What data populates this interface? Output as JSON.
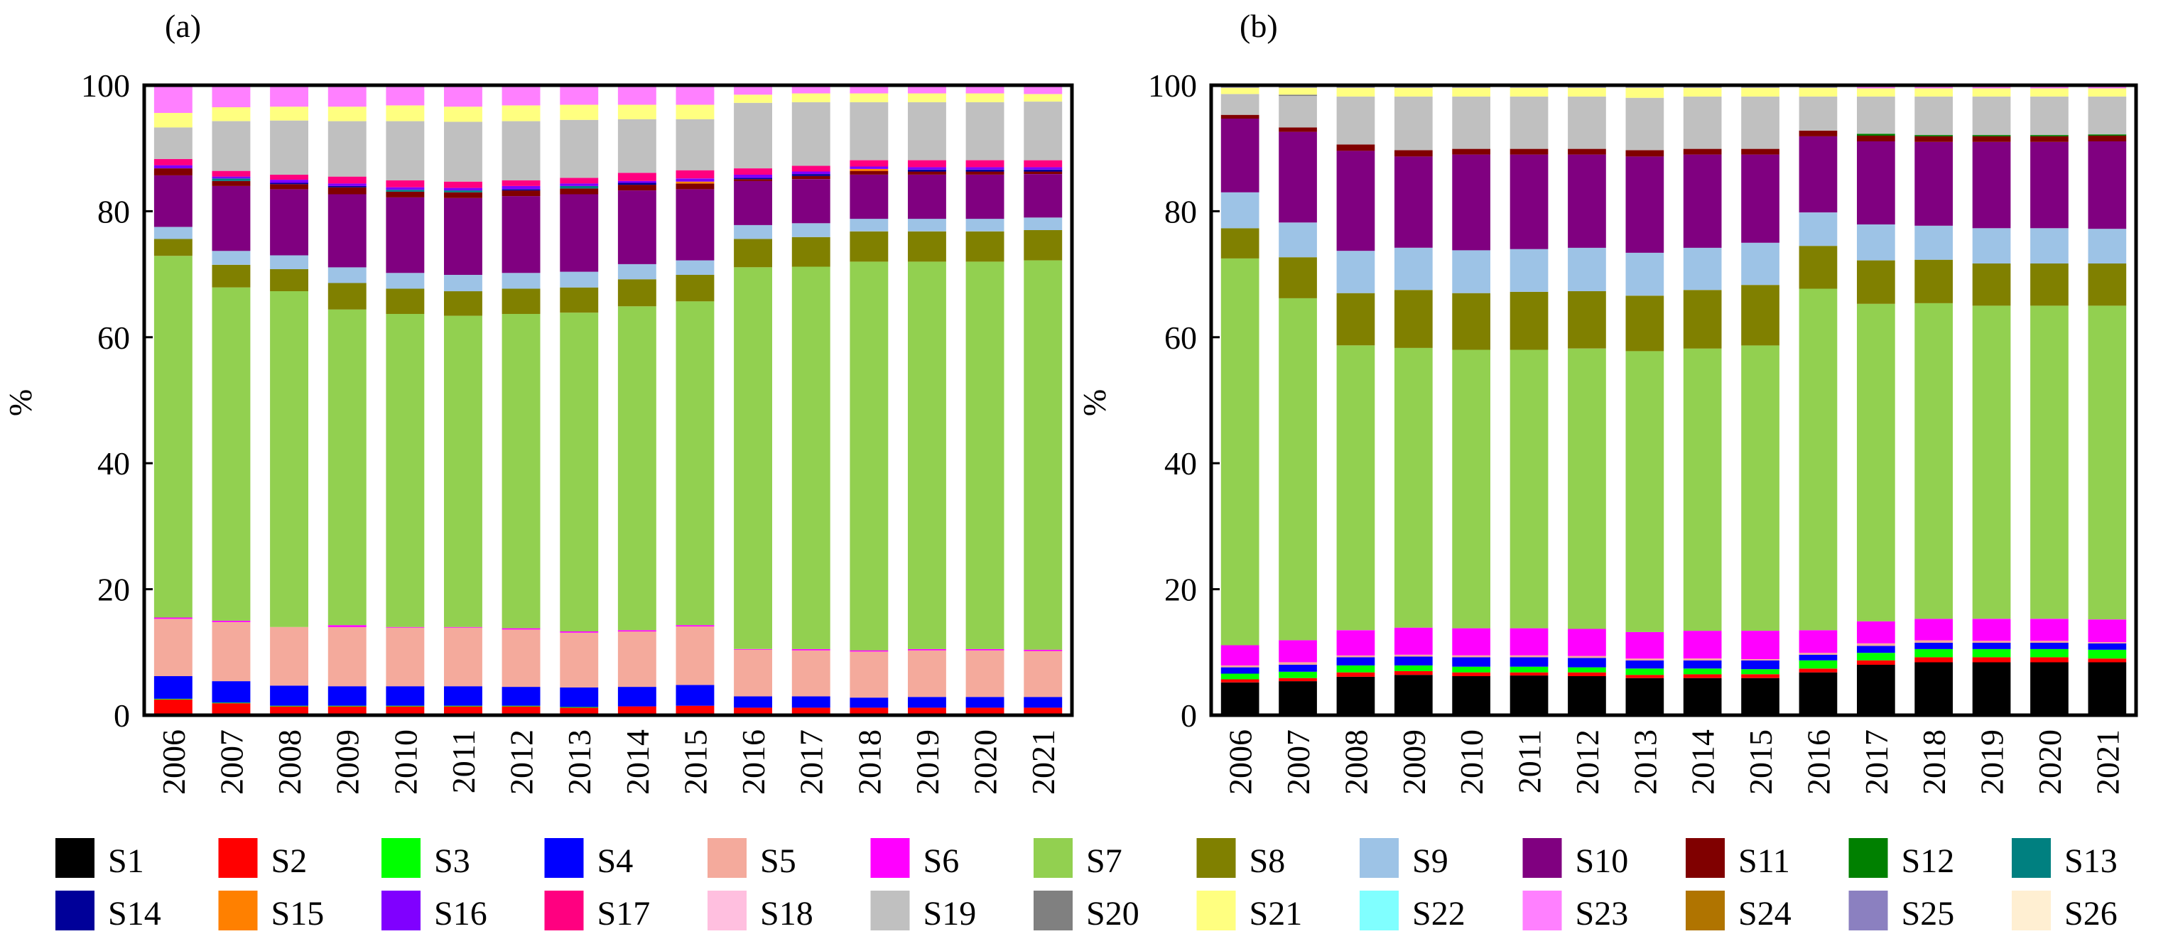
{
  "chart_data": [
    {
      "type": "bar",
      "stacked": true,
      "panel_label": "(a)",
      "ylabel": "%",
      "xlabel": "",
      "ylim": [
        0,
        100
      ],
      "yticks": [
        0,
        20,
        40,
        60,
        80,
        100
      ],
      "categories": [
        "2006",
        "2007",
        "2008",
        "2009",
        "2010",
        "2011",
        "2012",
        "2013",
        "2014",
        "2015",
        "2016",
        "2017",
        "2018",
        "2019",
        "2020",
        "2021"
      ],
      "series": [
        {
          "name": "S1",
          "values": [
            0.1,
            0.1,
            0.1,
            0.1,
            0.1,
            0.1,
            0.1,
            0.1,
            0.1,
            0.1,
            0.1,
            0.1,
            0.1,
            0.1,
            0.1,
            0.1
          ]
        },
        {
          "name": "S2",
          "values": [
            2.4,
            1.8,
            1.3,
            1.3,
            1.3,
            1.3,
            1.3,
            1.1,
            1.3,
            1.4,
            1.1,
            1.1,
            1.1,
            1.1,
            1.1,
            1.1
          ]
        },
        {
          "name": "S3",
          "values": [
            0.1,
            0.1,
            0.1,
            0.1,
            0.1,
            0.1,
            0.1,
            0.1,
            0,
            0,
            0,
            0,
            0,
            0,
            0,
            0
          ]
        },
        {
          "name": "S4",
          "values": [
            3.6,
            3.4,
            3.2,
            3.1,
            3.1,
            3.1,
            3.0,
            3.1,
            3.1,
            3.3,
            1.8,
            1.8,
            1.6,
            1.7,
            1.7,
            1.7
          ]
        },
        {
          "name": "S5",
          "values": [
            9.1,
            9.4,
            9.3,
            9.4,
            9.3,
            9.3,
            9.1,
            8.7,
            8.8,
            9.3,
            7.4,
            7.3,
            7.3,
            7.4,
            7.4,
            7.3
          ]
        },
        {
          "name": "S6",
          "values": [
            0.2,
            0.2,
            0.0,
            0.3,
            0.1,
            0.1,
            0.2,
            0.2,
            0.2,
            0.2,
            0.1,
            0.2,
            0.2,
            0.2,
            0.2,
            0.2
          ]
        },
        {
          "name": "S7",
          "values": [
            57.4,
            52.9,
            53.3,
            50.1,
            49.7,
            49.4,
            49.9,
            50.6,
            51.4,
            51.4,
            60.6,
            60.7,
            61.7,
            61.5,
            61.5,
            61.8
          ]
        },
        {
          "name": "S8",
          "values": [
            2.7,
            3.6,
            3.5,
            4.2,
            4.0,
            3.9,
            4.0,
            4.0,
            4.3,
            4.2,
            4.5,
            4.7,
            4.8,
            4.8,
            4.8,
            4.8
          ]
        },
        {
          "name": "S9",
          "values": [
            1.9,
            2.2,
            2.2,
            2.5,
            2.5,
            2.6,
            2.5,
            2.5,
            2.4,
            2.3,
            2.2,
            2.2,
            2.0,
            2.0,
            2.0,
            2.0
          ]
        },
        {
          "name": "S10",
          "values": [
            8.2,
            10.3,
            10.5,
            11.6,
            12.0,
            12.2,
            12.2,
            12.3,
            11.7,
            11.3,
            7.0,
            7.0,
            7.0,
            7.0,
            7.0,
            6.9
          ]
        },
        {
          "name": "S11",
          "values": [
            1.1,
            0.8,
            0.8,
            1.1,
            0.9,
            0.9,
            0.9,
            0.9,
            0.9,
            0.9,
            0.3,
            0.5,
            0.6,
            0.5,
            0.5,
            0.4
          ]
        },
        {
          "name": "S13",
          "values": [
            0,
            0.4,
            0,
            0,
            0.3,
            0.3,
            0,
            0.4,
            0,
            0,
            0,
            0,
            0,
            0,
            0,
            0
          ]
        },
        {
          "name": "S14",
          "values": [
            0,
            0,
            0.2,
            0.2,
            0,
            0,
            0.2,
            0,
            0.3,
            0,
            0.2,
            0.3,
            0,
            0.3,
            0.3,
            0.3
          ]
        },
        {
          "name": "S15",
          "values": [
            0,
            0,
            0,
            0,
            0,
            0,
            0,
            0,
            0,
            0.3,
            0,
            0,
            0.3,
            0,
            0,
            0
          ]
        },
        {
          "name": "S16",
          "values": [
            0.5,
            0.3,
            0.5,
            0.4,
            0.4,
            0.4,
            0.5,
            0.4,
            0.3,
            0.5,
            0.5,
            0.4,
            0.4,
            0.4,
            0.4,
            0.4
          ]
        },
        {
          "name": "S17",
          "values": [
            1.0,
            0.9,
            0.8,
            1.1,
            1.1,
            1.0,
            0.9,
            0.9,
            1.3,
            1.3,
            1.0,
            0.9,
            1.0,
            1.1,
            1.1,
            1.1
          ]
        },
        {
          "name": "S19",
          "values": [
            5.0,
            7.9,
            8.6,
            8.8,
            9.4,
            9.5,
            9.4,
            9.2,
            8.5,
            8.1,
            10.4,
            10.1,
            9.2,
            9.2,
            9.2,
            9.3
          ]
        },
        {
          "name": "S21",
          "values": [
            2.3,
            2.2,
            2.2,
            2.3,
            2.5,
            2.4,
            2.5,
            2.4,
            2.3,
            2.3,
            1.3,
            1.4,
            1.4,
            1.4,
            1.4,
            1.2
          ]
        },
        {
          "name": "S23",
          "values": [
            4.4,
            3.5,
            3.4,
            3.4,
            3.2,
            3.4,
            3.2,
            3.1,
            3.1,
            3.1,
            1.5,
            1.3,
            1.3,
            1.3,
            1.3,
            1.4
          ]
        }
      ]
    },
    {
      "type": "bar",
      "stacked": true,
      "panel_label": "(b)",
      "ylabel": "%",
      "xlabel": "",
      "ylim": [
        0,
        100
      ],
      "yticks": [
        0,
        20,
        40,
        60,
        80,
        100
      ],
      "categories": [
        "2006",
        "2007",
        "2008",
        "2009",
        "2010",
        "2011",
        "2012",
        "2013",
        "2014",
        "2015",
        "2016",
        "2017",
        "2018",
        "2019",
        "2020",
        "2021"
      ],
      "series": [
        {
          "name": "S1",
          "values": [
            5.2,
            5.4,
            6.1,
            6.4,
            6.2,
            6.3,
            6.2,
            5.9,
            5.9,
            5.9,
            6.8,
            8.0,
            8.4,
            8.4,
            8.4,
            8.4
          ]
        },
        {
          "name": "S2",
          "values": [
            0.5,
            0.5,
            0.7,
            0.6,
            0.6,
            0.5,
            0.6,
            0.5,
            0.6,
            0.6,
            0.6,
            0.7,
            0.8,
            0.8,
            0.8,
            0.6
          ]
        },
        {
          "name": "S3",
          "values": [
            0.9,
            1.0,
            1.1,
            0.9,
            0.9,
            0.9,
            0.8,
            1.0,
            0.9,
            0.8,
            1.3,
            1.2,
            1.3,
            1.3,
            1.3,
            1.4
          ]
        },
        {
          "name": "S4",
          "values": [
            1.0,
            1.1,
            1.3,
            1.4,
            1.5,
            1.5,
            1.5,
            1.3,
            1.3,
            1.4,
            0.9,
            1.1,
            1.0,
            1.0,
            1.0,
            1.0
          ]
        },
        {
          "name": "S5",
          "values": [
            0.3,
            0.4,
            0.3,
            0.3,
            0.3,
            0.3,
            0.3,
            0.3,
            0.3,
            0.2,
            0.3,
            0.4,
            0.4,
            0.3,
            0.3,
            0.2
          ]
        },
        {
          "name": "S6",
          "values": [
            3.2,
            3.5,
            4.0,
            4.3,
            4.3,
            4.3,
            4.3,
            4.2,
            4.4,
            4.5,
            3.6,
            3.5,
            3.4,
            3.5,
            3.5,
            3.6
          ]
        },
        {
          "name": "S7",
          "values": [
            61.4,
            54.3,
            45.2,
            44.4,
            44.2,
            44.2,
            44.5,
            44.6,
            44.8,
            45.3,
            54.2,
            50.4,
            50.1,
            49.7,
            49.7,
            49.8
          ]
        },
        {
          "name": "S8",
          "values": [
            4.8,
            6.5,
            8.3,
            9.2,
            9.0,
            9.2,
            9.1,
            8.8,
            9.3,
            9.6,
            6.8,
            6.9,
            6.9,
            6.7,
            6.7,
            6.7
          ]
        },
        {
          "name": "S9",
          "values": [
            5.7,
            5.5,
            6.7,
            6.7,
            6.8,
            6.8,
            6.9,
            6.8,
            6.7,
            6.7,
            5.3,
            5.7,
            5.4,
            5.6,
            5.6,
            5.5
          ]
        },
        {
          "name": "S10",
          "values": [
            11.7,
            14.4,
            15.9,
            14.5,
            15.2,
            15.0,
            14.8,
            15.3,
            14.8,
            14.0,
            12.1,
            13.2,
            13.3,
            13.7,
            13.7,
            13.9
          ]
        },
        {
          "name": "S11",
          "values": [
            0.6,
            0.7,
            1.0,
            1.0,
            0.9,
            0.9,
            0.9,
            1.0,
            0.9,
            0.9,
            0.9,
            0.9,
            0.9,
            0.9,
            0.9,
            0.9
          ]
        },
        {
          "name": "S12",
          "values": [
            0,
            0,
            0,
            0,
            0,
            0,
            0,
            0,
            0,
            0,
            0,
            0.3,
            0.2,
            0.2,
            0.2,
            0.2
          ]
        },
        {
          "name": "S19",
          "values": [
            3.3,
            5.0,
            7.6,
            8.5,
            8.3,
            8.3,
            8.3,
            8.3,
            8.3,
            8.3,
            5.4,
            5.9,
            6.1,
            6.1,
            6.1,
            6.0
          ]
        },
        {
          "name": "S20",
          "values": [
            0,
            0.2,
            0,
            0,
            0,
            0,
            0,
            0,
            0,
            0,
            0,
            0,
            0,
            0,
            0,
            0
          ]
        },
        {
          "name": "S21",
          "values": [
            1.0,
            1.1,
            1.4,
            1.4,
            1.4,
            1.4,
            1.4,
            1.6,
            1.4,
            1.4,
            1.4,
            1.3,
            1.3,
            1.3,
            1.3,
            1.3
          ]
        },
        {
          "name": "S23",
          "values": [
            0,
            0,
            0,
            0,
            0,
            0,
            0,
            0,
            0,
            0,
            0,
            0.5,
            0.5,
            0.5,
            0.5,
            0.5
          ]
        },
        {
          "name": "S25",
          "values": [
            0.4,
            0.4,
            0.4,
            0.4,
            0.4,
            0.4,
            0.4,
            0.4,
            0.4,
            0.4,
            0.4,
            0,
            0,
            0,
            0,
            0
          ]
        }
      ]
    }
  ],
  "legend": [
    {
      "name": "S1",
      "color": "#000000"
    },
    {
      "name": "S2",
      "color": "#ff0000"
    },
    {
      "name": "S3",
      "color": "#00ff00"
    },
    {
      "name": "S4",
      "color": "#0000ff"
    },
    {
      "name": "S5",
      "color": "#f4aa9c"
    },
    {
      "name": "S6",
      "color": "#ff00ff"
    },
    {
      "name": "S7",
      "color": "#92d050"
    },
    {
      "name": "S8",
      "color": "#808000"
    },
    {
      "name": "S9",
      "color": "#9dc3e6"
    },
    {
      "name": "S10",
      "color": "#800080"
    },
    {
      "name": "S11",
      "color": "#800000"
    },
    {
      "name": "S12",
      "color": "#008000"
    },
    {
      "name": "S13",
      "color": "#008080"
    },
    {
      "name": "S14",
      "color": "#000099"
    },
    {
      "name": "S15",
      "color": "#ff8000"
    },
    {
      "name": "S16",
      "color": "#8000ff"
    },
    {
      "name": "S17",
      "color": "#ff0080"
    },
    {
      "name": "S18",
      "color": "#ffbfdf"
    },
    {
      "name": "S19",
      "color": "#c0c0c0"
    },
    {
      "name": "S20",
      "color": "#808080"
    },
    {
      "name": "S21",
      "color": "#ffff80"
    },
    {
      "name": "S22",
      "color": "#80ffff"
    },
    {
      "name": "S23",
      "color": "#ff80ff"
    },
    {
      "name": "S24",
      "color": "#b07400"
    },
    {
      "name": "S25",
      "color": "#8b80c0"
    },
    {
      "name": "S26",
      "color": "#ffefd2"
    }
  ]
}
